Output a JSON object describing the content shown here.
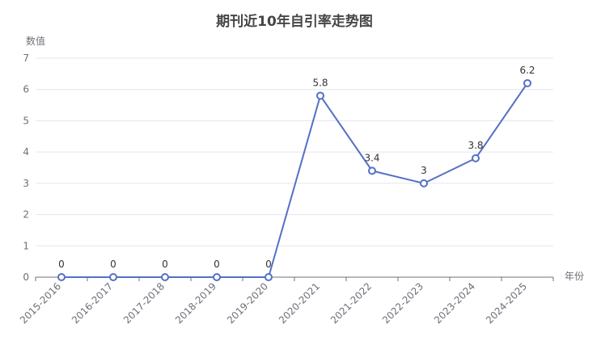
{
  "chart_data": {
    "type": "line",
    "title": "期刊近10年自引率走势图",
    "xlabel": "年份",
    "ylabel": "数值",
    "categories": [
      "2015-2016",
      "2016-2017",
      "2017-2018",
      "2018-2019",
      "2019-2020",
      "2020-2021",
      "2021-2022",
      "2022-2023",
      "2023-2024",
      "2024-2025"
    ],
    "series": [
      {
        "values": [
          0,
          0,
          0,
          0,
          0,
          5.8,
          3.4,
          3,
          3.8,
          6.2
        ]
      }
    ],
    "ylim": [
      0,
      7
    ],
    "yticks": [
      0,
      1,
      2,
      3,
      4,
      5,
      6,
      7
    ],
    "data_labels": [
      "0",
      "0",
      "0",
      "0",
      "0",
      "5.8",
      "3.4",
      "3",
      "3.8",
      "6.2"
    ],
    "grid": true,
    "legend": "none",
    "colors": {
      "line": "#5470c6",
      "grid": "#e0e6f1",
      "axis": "#6e7079",
      "title": "#464646"
    }
  }
}
